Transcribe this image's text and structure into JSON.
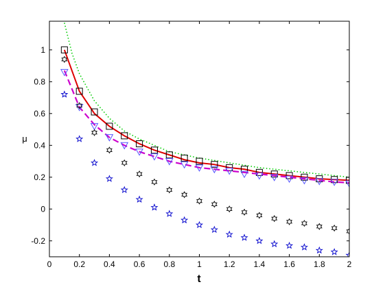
{
  "chart_data": {
    "type": "line",
    "title": "",
    "xlabel": "t",
    "ylabel": "μ",
    "xlim": [
      0,
      2
    ],
    "ylim": [
      -0.3,
      1.18
    ],
    "grid": false,
    "legend": "none",
    "xticks": [
      "0",
      "0.2",
      "0.4",
      "0.6",
      "0.8",
      "1",
      "1.2",
      "1.4",
      "1.6",
      "1.8",
      "2"
    ],
    "yticks": [
      "-0.2",
      "0",
      "0.2",
      "0.4",
      "0.6",
      "0.8",
      "1"
    ],
    "x": [
      0.1,
      0.2,
      0.3,
      0.4,
      0.5,
      0.6,
      0.7,
      0.8,
      0.9,
      1.0,
      1.1,
      1.2,
      1.3,
      1.4,
      1.5,
      1.6,
      1.7,
      1.8,
      1.9,
      2.0
    ],
    "series": [
      {
        "style": "dotted-line",
        "color": "#00cc00",
        "x": [
          0.1,
          0.15,
          0.2,
          0.3,
          0.4,
          0.5,
          0.6,
          0.7,
          0.8,
          0.9,
          1.0,
          1.2,
          1.4,
          1.6,
          1.8,
          2.0
        ],
        "values": [
          1.17,
          0.98,
          0.85,
          0.68,
          0.57,
          0.49,
          0.44,
          0.4,
          0.36,
          0.34,
          0.32,
          0.29,
          0.26,
          0.24,
          0.22,
          0.2
        ]
      },
      {
        "style": "solid-line",
        "color": "#dd0000",
        "values": [
          1.0,
          0.74,
          0.6,
          0.52,
          0.46,
          0.41,
          0.37,
          0.34,
          0.31,
          0.29,
          0.28,
          0.26,
          0.25,
          0.23,
          0.22,
          0.21,
          0.2,
          0.19,
          0.185,
          0.18
        ]
      },
      {
        "style": "square-markers",
        "color": "#000000",
        "values": [
          1.0,
          0.74,
          0.61,
          0.52,
          0.46,
          0.41,
          0.37,
          0.34,
          0.32,
          0.3,
          0.28,
          0.26,
          0.25,
          0.23,
          0.22,
          0.21,
          0.2,
          0.19,
          0.185,
          0.18
        ]
      },
      {
        "style": "dashed-line",
        "color": "#cc00cc",
        "values": [
          0.87,
          0.64,
          0.53,
          0.45,
          0.4,
          0.36,
          0.33,
          0.3,
          0.28,
          0.26,
          0.25,
          0.24,
          0.23,
          0.22,
          0.21,
          0.2,
          0.19,
          0.18,
          0.17,
          0.165
        ]
      },
      {
        "style": "triangle-down-markers",
        "color": "#5555ff",
        "values": [
          0.86,
          0.64,
          0.52,
          0.45,
          0.4,
          0.36,
          0.33,
          0.3,
          0.28,
          0.26,
          0.25,
          0.24,
          0.22,
          0.21,
          0.2,
          0.19,
          0.18,
          0.175,
          0.17,
          0.16
        ]
      },
      {
        "style": "hexagram-markers",
        "color": "#000000",
        "values": [
          0.94,
          0.65,
          0.48,
          0.37,
          0.29,
          0.22,
          0.17,
          0.12,
          0.09,
          0.05,
          0.03,
          0.0,
          -0.02,
          -0.04,
          -0.06,
          -0.08,
          -0.09,
          -0.11,
          -0.12,
          -0.14
        ]
      },
      {
        "style": "pentagram-markers",
        "color": "#0000cc",
        "values": [
          0.72,
          0.44,
          0.29,
          0.19,
          0.12,
          0.06,
          0.01,
          -0.03,
          -0.07,
          -0.1,
          -0.13,
          -0.16,
          -0.18,
          -0.2,
          -0.22,
          -0.23,
          -0.24,
          -0.26,
          -0.27,
          -0.29
        ]
      }
    ]
  }
}
